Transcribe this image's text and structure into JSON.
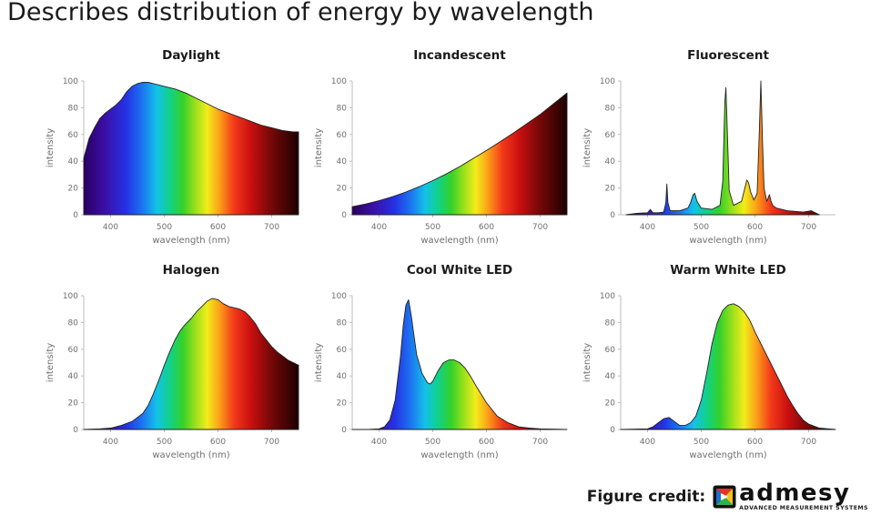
{
  "slide": {
    "title": "Describes distribution of energy by wavelength"
  },
  "credit": {
    "label": "Figure credit:",
    "brand": "admesy",
    "tagline": "ADVANCED MEASUREMENT SYSTEMS"
  },
  "chart_data": [
    {
      "type": "area",
      "title": "Daylight",
      "xlabel": "wavelength (nm)",
      "ylabel": "intensity",
      "xlim": [
        350,
        750
      ],
      "ylim": [
        0,
        100
      ],
      "xticks": [
        400,
        500,
        600,
        700
      ],
      "yticks": [
        0,
        20,
        40,
        60,
        80,
        100
      ],
      "x": [
        350,
        360,
        370,
        380,
        390,
        400,
        410,
        420,
        430,
        440,
        450,
        460,
        470,
        480,
        490,
        500,
        520,
        540,
        560,
        580,
        600,
        620,
        640,
        660,
        680,
        700,
        720,
        740,
        750
      ],
      "y": [
        42,
        57,
        65,
        72,
        76,
        79,
        82,
        86,
        92,
        96,
        98,
        99,
        99,
        98,
        97,
        96,
        94,
        91,
        87,
        83,
        79,
        76,
        73,
        70,
        67,
        65,
        63,
        62,
        62
      ]
    },
    {
      "type": "area",
      "title": "Incandescent",
      "xlabel": "wavelength (nm)",
      "ylabel": "intensity",
      "xlim": [
        350,
        750
      ],
      "ylim": [
        0,
        100
      ],
      "xticks": [
        400,
        500,
        600,
        700
      ],
      "yticks": [
        0,
        20,
        40,
        60,
        80,
        100
      ],
      "x": [
        350,
        375,
        400,
        425,
        450,
        475,
        500,
        525,
        550,
        575,
        600,
        625,
        650,
        675,
        700,
        725,
        750
      ],
      "y": [
        6,
        8,
        10.5,
        13.5,
        17,
        21,
        25.5,
        30.5,
        36,
        42,
        48,
        54.5,
        61,
        68,
        75,
        83,
        91
      ]
    },
    {
      "type": "area",
      "title": "Fluorescent",
      "xlabel": "wavelength (nm)",
      "ylabel": "intensity",
      "xlim": [
        350,
        750
      ],
      "ylim": [
        0,
        100
      ],
      "xticks": [
        400,
        500,
        600,
        700
      ],
      "yticks": [
        0,
        20,
        40,
        60,
        80,
        100
      ],
      "x": [
        360,
        380,
        400,
        403,
        405,
        407,
        410,
        420,
        430,
        434,
        436,
        438,
        442,
        460,
        475,
        480,
        485,
        488,
        492,
        500,
        520,
        535,
        540,
        544,
        546,
        548,
        552,
        560,
        575,
        580,
        585,
        588,
        592,
        598,
        604,
        608,
        611,
        614,
        617,
        622,
        627,
        630,
        633,
        640,
        660,
        690,
        705,
        710,
        720
      ],
      "y": [
        0,
        1,
        1.5,
        3,
        4,
        3,
        1.5,
        1.5,
        2,
        9,
        23,
        9,
        3,
        3,
        5,
        9,
        15,
        16,
        10,
        5,
        4,
        7,
        25,
        85,
        95,
        70,
        18,
        7,
        10,
        18,
        26,
        24,
        17,
        11,
        16,
        60,
        100,
        55,
        20,
        10,
        15,
        10,
        7,
        5,
        3,
        2,
        3,
        2,
        0
      ]
    },
    {
      "type": "area",
      "title": "Halogen",
      "xlabel": "wavelength (nm)",
      "ylabel": "intensity",
      "xlim": [
        350,
        750
      ],
      "ylim": [
        0,
        100
      ],
      "xticks": [
        400,
        500,
        600,
        700
      ],
      "yticks": [
        0,
        20,
        40,
        60,
        80,
        100
      ],
      "x": [
        350,
        380,
        400,
        420,
        440,
        460,
        470,
        480,
        490,
        500,
        510,
        520,
        530,
        540,
        550,
        560,
        570,
        580,
        590,
        600,
        610,
        620,
        630,
        640,
        650,
        660,
        670,
        680,
        690,
        700,
        710,
        720,
        730,
        740,
        750
      ],
      "y": [
        0,
        0.5,
        1,
        3,
        6,
        12,
        18,
        27,
        37,
        48,
        58,
        67,
        74,
        79,
        83,
        88,
        92,
        96,
        98,
        97,
        94,
        92,
        91,
        90,
        88,
        84,
        79,
        72,
        67,
        62,
        58,
        55,
        52,
        50,
        48
      ]
    },
    {
      "type": "area",
      "title": "Cool White LED",
      "xlabel": "wavelength (nm)",
      "ylabel": "intensity",
      "xlim": [
        350,
        750
      ],
      "ylim": [
        0,
        100
      ],
      "xticks": [
        400,
        500,
        600,
        700
      ],
      "yticks": [
        0,
        20,
        40,
        60,
        80,
        100
      ],
      "x": [
        350,
        380,
        400,
        410,
        420,
        430,
        440,
        445,
        450,
        455,
        460,
        465,
        470,
        480,
        490,
        495,
        500,
        510,
        520,
        530,
        540,
        550,
        560,
        570,
        580,
        600,
        620,
        640,
        660,
        680,
        700,
        750
      ],
      "y": [
        0,
        0,
        0.5,
        2,
        7,
        22,
        55,
        78,
        93,
        97,
        85,
        70,
        56,
        42,
        35,
        34,
        36,
        44,
        50,
        52,
        52,
        50,
        46,
        40,
        33,
        20,
        10,
        5,
        2,
        1,
        0.5,
        0
      ]
    },
    {
      "type": "area",
      "title": "Warm White LED",
      "xlabel": "wavelength (nm)",
      "ylabel": "intensity",
      "xlim": [
        350,
        750
      ],
      "ylim": [
        0,
        100
      ],
      "xticks": [
        400,
        500,
        600,
        700
      ],
      "yticks": [
        0,
        20,
        40,
        60,
        80,
        100
      ],
      "x": [
        350,
        400,
        410,
        420,
        430,
        440,
        450,
        460,
        470,
        480,
        490,
        500,
        510,
        520,
        530,
        540,
        550,
        560,
        570,
        580,
        590,
        600,
        610,
        620,
        630,
        640,
        650,
        660,
        670,
        680,
        690,
        700,
        720,
        750
      ],
      "y": [
        0,
        0.5,
        2,
        5,
        8,
        9,
        6,
        3,
        3,
        5,
        10,
        22,
        42,
        64,
        80,
        89,
        93,
        94,
        92,
        88,
        82,
        73,
        65,
        57,
        49,
        41,
        33,
        25,
        18,
        12,
        7,
        4,
        1,
        0
      ]
    }
  ]
}
